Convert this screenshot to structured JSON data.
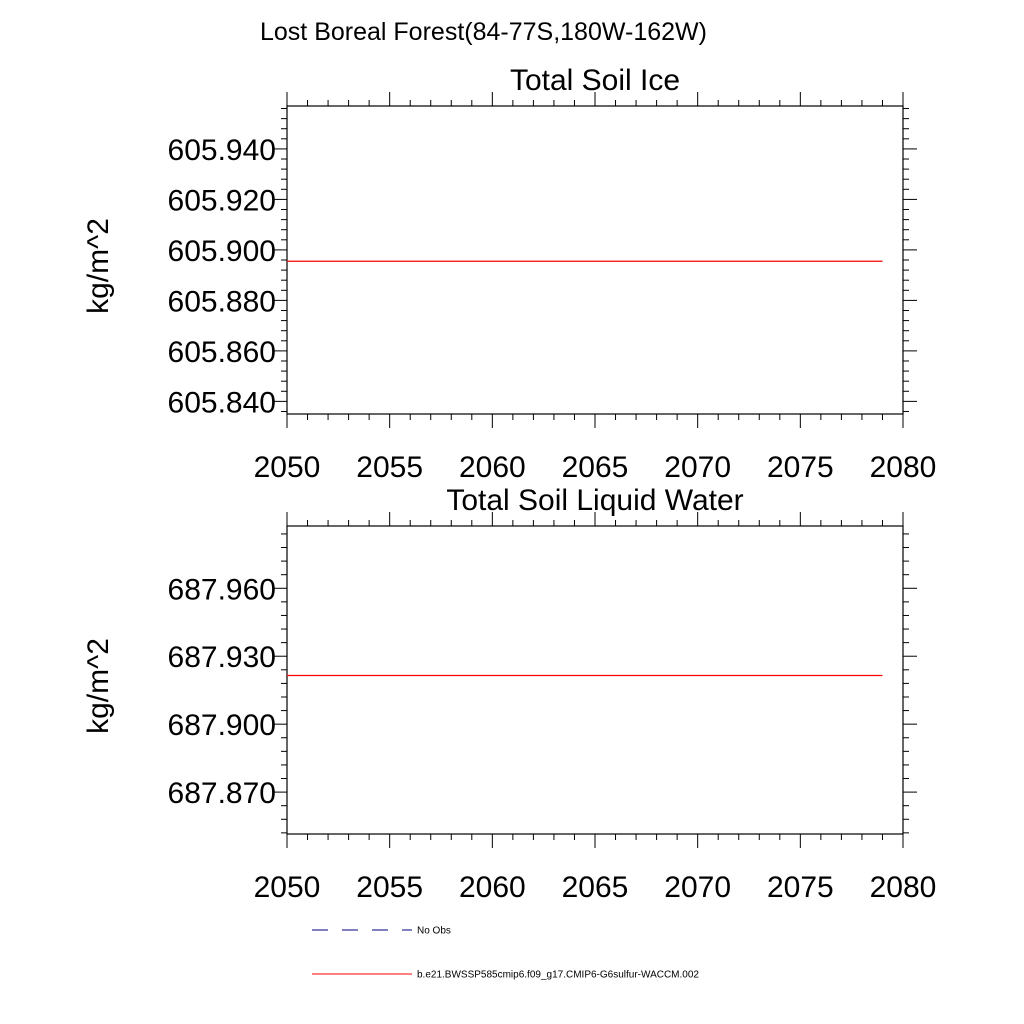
{
  "figure_title": "Lost Boreal Forest(84-77S,180W-162W)",
  "chart_data": [
    {
      "type": "line",
      "title": "Total Soil Ice",
      "xlabel": "",
      "ylabel": "kg/m^2",
      "xlim": [
        2050,
        2080
      ],
      "ylim": [
        605.835,
        605.957
      ],
      "x_ticks": [
        2050,
        2055,
        2060,
        2065,
        2070,
        2075,
        2080
      ],
      "x_tick_labels": [
        "2050",
        "2055",
        "2060",
        "2065",
        "2070",
        "2075",
        "2080"
      ],
      "y_ticks": [
        605.84,
        605.86,
        605.88,
        605.9,
        605.92,
        605.94
      ],
      "y_tick_labels": [
        "605.840",
        "605.860",
        "605.880",
        "605.900",
        "605.920",
        "605.940"
      ],
      "series": [
        {
          "name": "b.e21.BWSSP585cmip6.f09_g17.CMIP6-G6sulfur-WACCM.002",
          "color": "#ff0000",
          "x": [
            2050,
            2079
          ],
          "y": [
            605.8955,
            605.8955
          ]
        }
      ]
    },
    {
      "type": "line",
      "title": "Total Soil Liquid Water",
      "xlabel": "",
      "ylabel": "kg/m^2",
      "xlim": [
        2050,
        2080
      ],
      "ylim": [
        687.8515,
        687.9875
      ],
      "x_ticks": [
        2050,
        2055,
        2060,
        2065,
        2070,
        2075,
        2080
      ],
      "x_tick_labels": [
        "2050",
        "2055",
        "2060",
        "2065",
        "2070",
        "2075",
        "2080"
      ],
      "y_ticks": [
        687.87,
        687.9,
        687.93,
        687.96
      ],
      "y_tick_labels": [
        "687.870",
        "687.900",
        "687.930",
        "687.960"
      ],
      "series": [
        {
          "name": "b.e21.BWSSP585cmip6.f09_g17.CMIP6-G6sulfur-WACCM.002",
          "color": "#ff0000",
          "x": [
            2050,
            2079
          ],
          "y": [
            687.9215,
            687.9215
          ]
        }
      ]
    }
  ],
  "legend": [
    {
      "label": "No Obs",
      "color": "#000080",
      "dash": "dashed"
    },
    {
      "label": "b.e21.BWSSP585cmip6.f09_g17.CMIP6-G6sulfur-WACCM.002",
      "color": "#ff0000",
      "dash": "solid"
    }
  ]
}
